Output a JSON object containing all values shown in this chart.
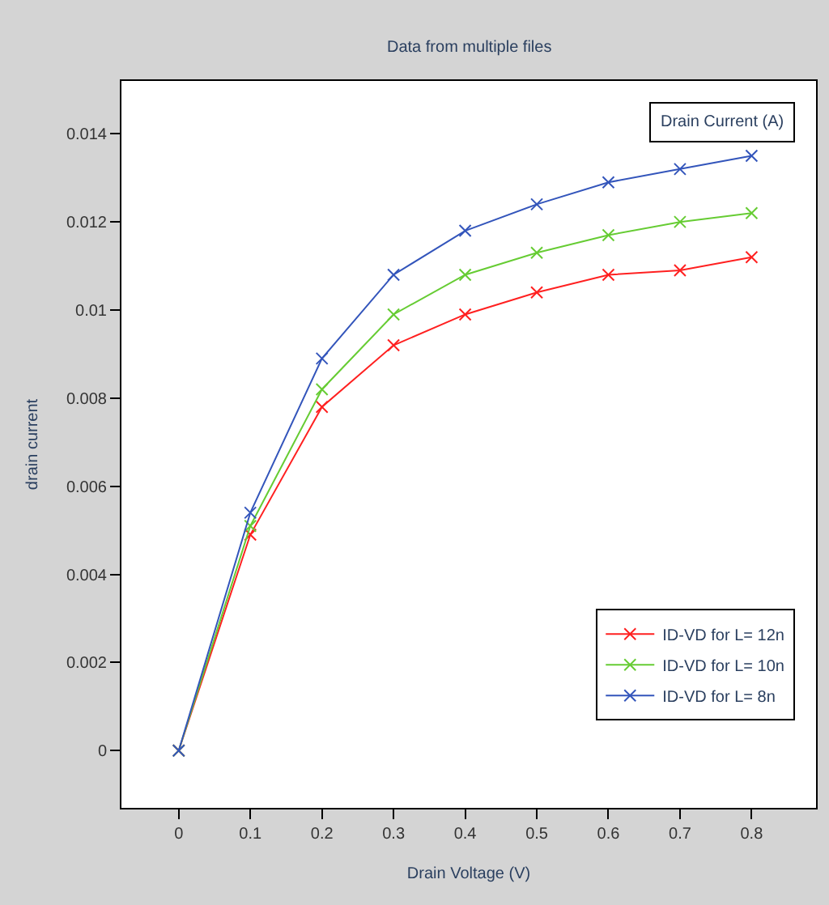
{
  "chart_data": {
    "type": "line",
    "subtitle": "Data from multiple files",
    "xlabel": "Drain Voltage (V)",
    "ylabel": "drain current",
    "x": [
      0,
      0.1,
      0.2,
      0.3,
      0.4,
      0.5,
      0.6,
      0.7,
      0.8
    ],
    "series": [
      {
        "name": "ID-VD for L= 12n",
        "color": "#ff2020",
        "values": [
          0,
          0.0049,
          0.0078,
          0.0092,
          0.0099,
          0.0104,
          0.0108,
          0.0109,
          0.0112
        ]
      },
      {
        "name": "ID-VD for L= 10n",
        "color": "#66cc33",
        "values": [
          0,
          0.0051,
          0.0082,
          0.0099,
          0.0108,
          0.0113,
          0.0117,
          0.012,
          0.0122
        ]
      },
      {
        "name": "ID-VD for L= 8n",
        "color": "#3355bb",
        "values": [
          0,
          0.0054,
          0.0089,
          0.0108,
          0.0118,
          0.0124,
          0.0129,
          0.0132,
          0.0135
        ]
      }
    ],
    "annotations": [
      "Drain Current (A)"
    ],
    "xlim": [
      -0.08,
      0.89
    ],
    "xticks": [
      0,
      0.1,
      0.2,
      0.3,
      0.4,
      0.5,
      0.6,
      0.7,
      0.8
    ],
    "ylim": [
      -0.0013,
      0.0152
    ],
    "yticks": [
      0,
      0.002,
      0.004,
      0.006,
      0.008,
      0.01,
      0.012,
      0.014
    ],
    "marker": "cross",
    "line_style": "solid",
    "legend": "bottom right"
  }
}
